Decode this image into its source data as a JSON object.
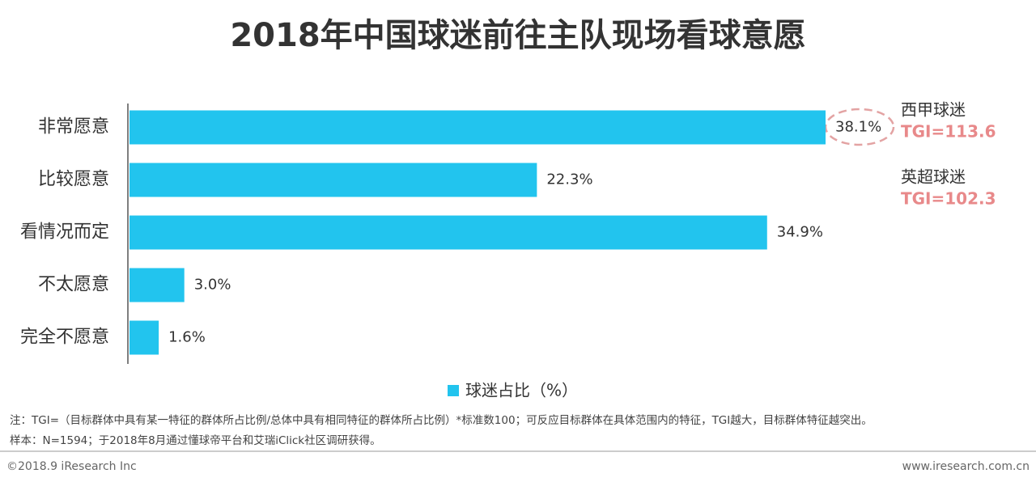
{
  "chart_data": {
    "type": "bar",
    "orientation": "horizontal",
    "title": "2018年中国球迷前往主队现场看球意愿",
    "categories": [
      "非常愿意",
      "比较愿意",
      "看情况而定",
      "不太愿意",
      "完全不愿意"
    ],
    "series": [
      {
        "name": "球迷占比（%）",
        "color": "#22c4ee",
        "values": [
          38.1,
          22.3,
          34.9,
          3.0,
          1.6
        ],
        "value_labels": [
          "38.1%",
          "22.3%",
          "34.9%",
          "3.0%",
          "1.6%"
        ]
      }
    ],
    "annotations": [
      {
        "title": "西甲球迷",
        "text": "TGI=113.6"
      },
      {
        "title": "英超球迷",
        "text": "TGI=102.3"
      }
    ]
  },
  "notes": [
    "注：TGI=（目标群体中具有某一特征的群体所占比例/总体中具有相同特征的群体所占比例）*标准数100；可反应目标群体在具体范围内的特征，TGI越大，目标群体特征越突出。",
    "样本：N=1594；于2018年8月通过懂球帝平台和艾瑞iClick社区调研获得。"
  ],
  "footer": {
    "copyright": "©2018.9 iResearch Inc",
    "website": "www.iresearch.com.cn"
  }
}
